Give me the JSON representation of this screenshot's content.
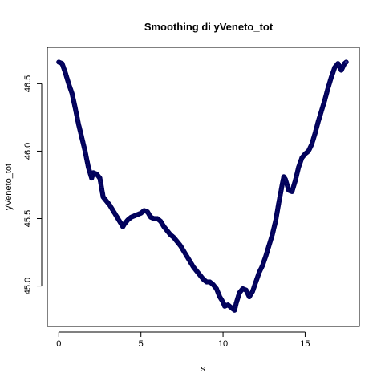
{
  "chart_data": {
    "type": "scatter",
    "title": "Smoothing di yVeneto_tot",
    "xlabel": "s",
    "ylabel": "yVeneto_tot",
    "xlim": [
      -0.7,
      18.3
    ],
    "ylim": [
      44.7,
      46.77
    ],
    "xticks": [
      0,
      5,
      10,
      15
    ],
    "yticks": [
      45.0,
      45.5,
      46.0,
      46.5
    ],
    "xtick_labels": [
      "0",
      "5",
      "10",
      "15"
    ],
    "ytick_labels": [
      "45.0",
      "45.5",
      "46.0",
      "46.5"
    ],
    "grid": false,
    "legend": "none",
    "point_color": "#00005a",
    "point_fill": "#2c2c8c",
    "series": [
      {
        "x": [
          0.0,
          0.2,
          0.4,
          0.6,
          0.8,
          1.0,
          1.2,
          1.4,
          1.6,
          1.8,
          2.0,
          2.1,
          2.3,
          2.5,
          2.7,
          2.9,
          3.1,
          3.3,
          3.5,
          3.7,
          3.9,
          4.0,
          4.2,
          4.4,
          4.6,
          4.8,
          5.0,
          5.2,
          5.4,
          5.6,
          5.8,
          6.0,
          6.2,
          6.4,
          6.6,
          6.8,
          7.0,
          7.2,
          7.4,
          7.6,
          7.8,
          8.0,
          8.2,
          8.4,
          8.6,
          8.8,
          9.0,
          9.2,
          9.4,
          9.6,
          9.8,
          10.0,
          10.1,
          10.3,
          10.5,
          10.7,
          10.8,
          11.0,
          11.2,
          11.4,
          11.6,
          11.8,
          12.0,
          12.2,
          12.4,
          12.6,
          12.8,
          13.0,
          13.2,
          13.4,
          13.6,
          13.7,
          13.8,
          14.0,
          14.2,
          14.4,
          14.6,
          14.8,
          15.0,
          15.2,
          15.4,
          15.6,
          15.8,
          16.0,
          16.2,
          16.4,
          16.6,
          16.8,
          17.0,
          17.2,
          17.4,
          17.5
        ],
        "y": [
          46.66,
          46.65,
          46.58,
          46.5,
          46.43,
          46.32,
          46.2,
          46.1,
          46.0,
          45.88,
          45.8,
          45.84,
          45.83,
          45.8,
          45.66,
          45.63,
          45.6,
          45.56,
          45.52,
          45.48,
          45.44,
          45.46,
          45.49,
          45.51,
          45.52,
          45.53,
          45.54,
          45.56,
          45.55,
          45.51,
          45.5,
          45.5,
          45.48,
          45.44,
          45.41,
          45.38,
          45.36,
          45.33,
          45.3,
          45.26,
          45.22,
          45.18,
          45.14,
          45.11,
          45.08,
          45.05,
          45.03,
          45.03,
          45.01,
          44.98,
          44.92,
          44.88,
          44.85,
          44.86,
          44.84,
          44.82,
          44.87,
          44.95,
          44.98,
          44.97,
          44.92,
          44.96,
          45.03,
          45.1,
          45.15,
          45.22,
          45.3,
          45.38,
          45.48,
          45.62,
          45.75,
          45.81,
          45.79,
          45.71,
          45.7,
          45.78,
          45.88,
          45.95,
          45.98,
          46.0,
          46.05,
          46.13,
          46.22,
          46.3,
          46.38,
          46.47,
          46.55,
          46.62,
          46.65,
          46.6,
          46.65,
          46.66
        ]
      }
    ]
  }
}
